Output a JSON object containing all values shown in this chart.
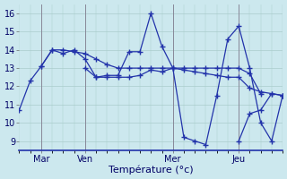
{
  "title": "",
  "xlabel": "Température (°c)",
  "ylabel": "",
  "xlim": [
    0,
    72
  ],
  "ylim": [
    8.5,
    16.5
  ],
  "yticks": [
    9,
    10,
    11,
    12,
    13,
    14,
    15,
    16
  ],
  "xtick_positions": [
    6,
    18,
    42,
    60
  ],
  "xtick_labels": [
    "Mar",
    "Ven",
    "Mer",
    "Jeu"
  ],
  "background_color": "#cce8ee",
  "grid_color": "#aacccc",
  "line_color": "#2233aa",
  "line1_x": [
    0,
    3,
    6,
    9,
    12,
    15,
    18,
    21,
    24,
    27,
    30,
    33,
    36,
    39,
    42,
    45,
    48,
    51,
    54,
    57,
    60,
    63,
    66,
    69,
    72
  ],
  "line1_y": [
    10.7,
    12.3,
    13.1,
    14.0,
    14.0,
    13.9,
    13.8,
    13.5,
    13.2,
    13.0,
    13.0,
    13.0,
    13.0,
    13.0,
    13.0,
    12.9,
    12.8,
    12.7,
    12.6,
    12.5,
    12.5,
    11.9,
    11.7,
    11.6,
    11.5
  ],
  "line2_x": [
    6,
    9,
    12,
    15,
    18,
    21,
    24,
    27,
    30,
    33,
    36,
    39,
    42,
    45,
    48,
    51,
    54,
    57,
    60,
    63,
    66
  ],
  "line2_y": [
    13.1,
    14.0,
    13.8,
    14.0,
    13.5,
    12.5,
    12.6,
    12.6,
    13.9,
    13.9,
    16.0,
    14.2,
    13.0,
    13.0,
    13.0,
    13.0,
    13.0,
    13.0,
    13.0,
    12.7,
    11.6
  ],
  "line3_x": [
    18,
    21,
    24,
    27,
    30,
    33,
    36,
    39,
    42,
    45,
    48,
    51,
    54,
    57,
    60,
    63,
    66,
    69,
    72
  ],
  "line3_y": [
    13.0,
    12.5,
    12.5,
    12.5,
    12.5,
    12.6,
    12.9,
    12.8,
    13.0,
    9.2,
    9.0,
    8.8,
    11.5,
    14.6,
    15.3,
    13.0,
    10.0,
    9.0,
    11.5
  ],
  "line4_x": [
    60,
    63,
    66,
    69,
    72
  ],
  "line4_y": [
    9.0,
    10.5,
    10.7,
    11.6,
    11.5
  ]
}
